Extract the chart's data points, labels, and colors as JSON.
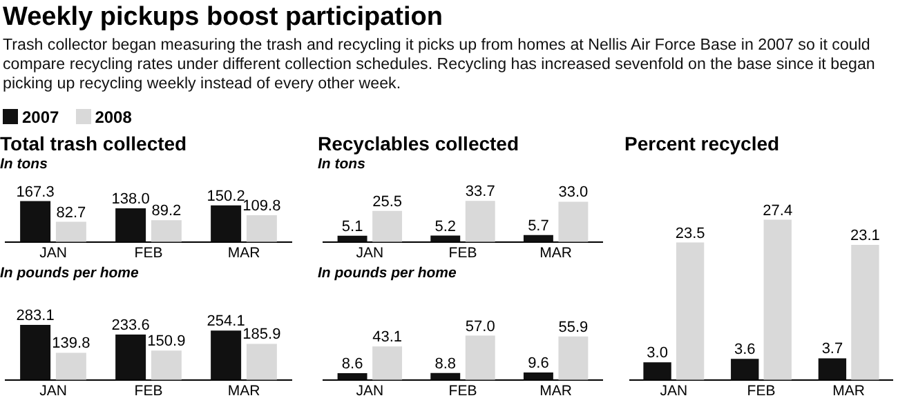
{
  "chart_data": [
    {
      "type": "other",
      "title": "Weekly pickups boost participation",
      "subtitle": "Trash collector began measuring the trash and recycling it picks up from homes at Nellis Air Force Base in 2007 so it could compare recycling rates under different collection schedules. Recycling has increased sevenfold on the base since it began picking up recycling weekly instead of every other week."
    },
    {
      "type": "bar",
      "title": "Total trash collected",
      "subtitle": "In tons",
      "categories": [
        "JAN",
        "FEB",
        "MAR"
      ],
      "legend": "top left",
      "series": [
        {
          "name": "2007",
          "color": "#111111",
          "values": [
            167.3,
            138.0,
            150.2
          ],
          "value_labels": [
            "167.3",
            "138.0",
            "150.2"
          ]
        },
        {
          "name": "2008",
          "color": "#d9d9d9",
          "values": [
            82.7,
            89.2,
            109.8
          ],
          "value_labels": [
            "82.7",
            "89.2",
            "109.8"
          ]
        }
      ]
    },
    {
      "type": "bar",
      "subtitle": "In pounds per home",
      "categories": [
        "JAN",
        "FEB",
        "MAR"
      ],
      "series": [
        {
          "color": "#111111",
          "values": [
            283.1,
            233.6,
            254.1
          ],
          "value_labels": [
            "283.1",
            "233.6",
            "254.1"
          ]
        },
        {
          "color": "#d9d9d9",
          "values": [
            139.8,
            150.9,
            185.9
          ],
          "value_labels": [
            "139.8",
            "150.9",
            "185.9"
          ]
        }
      ]
    },
    {
      "type": "bar",
      "title": "Recyclables collected",
      "subtitle": "In tons",
      "categories": [
        "JAN",
        "FEB",
        "MAR"
      ],
      "series": [
        {
          "color": "#111111",
          "values": [
            5.1,
            5.2,
            5.7
          ],
          "value_labels": [
            "5.1",
            "5.2",
            "5.7"
          ]
        },
        {
          "color": "#d9d9d9",
          "values": [
            25.5,
            33.7,
            33.0
          ],
          "value_labels": [
            "25.5",
            "33.7",
            "33.0"
          ]
        }
      ]
    },
    {
      "type": "bar",
      "subtitle": "In pounds per home",
      "categories": [
        "JAN",
        "FEB",
        "MAR"
      ],
      "series": [
        {
          "color": "#111111",
          "values": [
            8.6,
            8.8,
            9.6
          ],
          "value_labels": [
            "8.6",
            "8.8",
            "9.6"
          ]
        },
        {
          "color": "#d9d9d9",
          "values": [
            43.1,
            57.0,
            55.9
          ],
          "value_labels": [
            "43.1",
            "57.0",
            "55.9"
          ]
        }
      ]
    },
    {
      "type": "bar",
      "title": "Percent recycled",
      "categories": [
        "JAN",
        "FEB",
        "MAR"
      ],
      "series": [
        {
          "color": "#111111",
          "values": [
            3.0,
            3.6,
            3.7
          ],
          "value_labels": [
            "3.0",
            "3.6",
            "3.7"
          ]
        },
        {
          "color": "#d9d9d9",
          "values": [
            23.5,
            27.4,
            23.1
          ],
          "value_labels": [
            "23.5",
            "27.4",
            "23.1"
          ]
        }
      ]
    }
  ]
}
